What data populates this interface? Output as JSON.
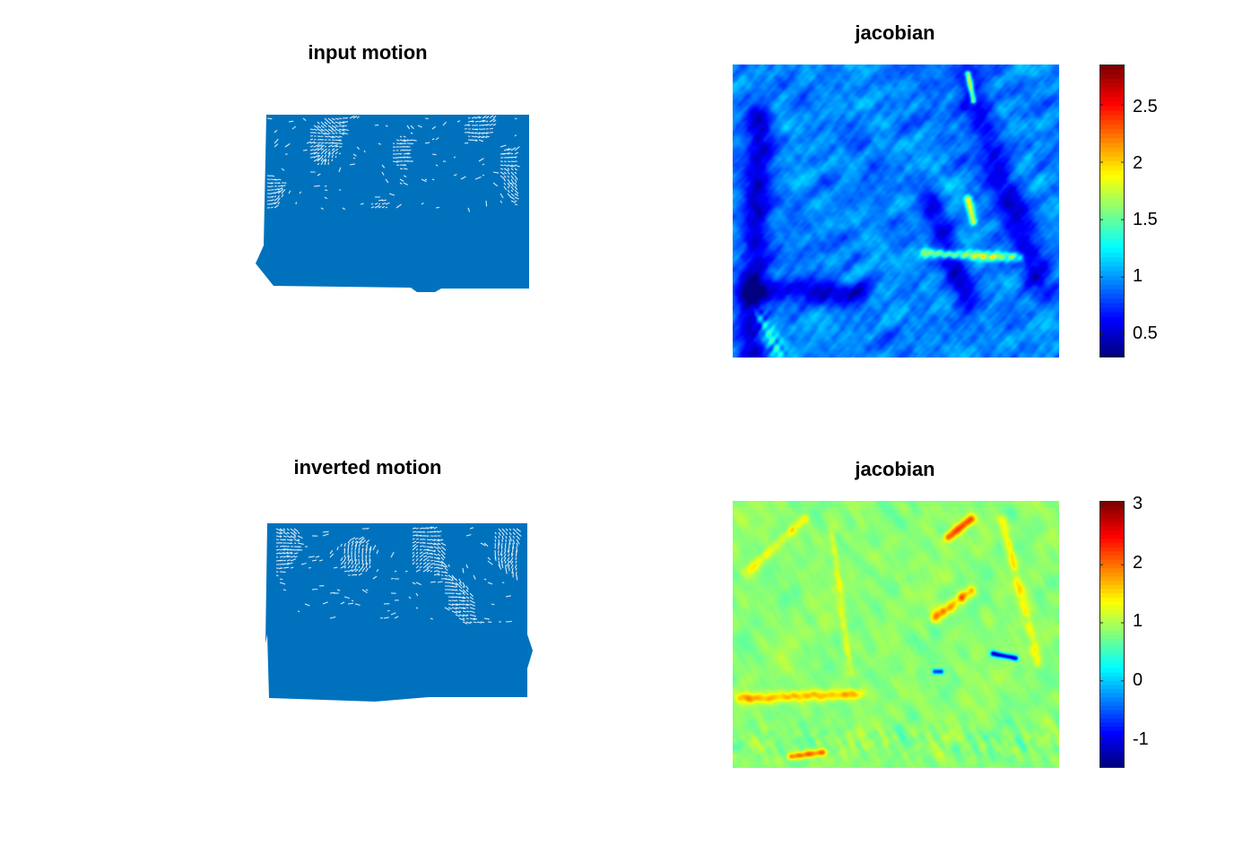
{
  "figure": {
    "colors": {
      "quiver": "#0072bd",
      "background": "#ffffff",
      "colormap": "jet"
    }
  },
  "chart_data": [
    {
      "type": "quiver",
      "title": "input motion",
      "color": "#0072bd",
      "axes": "off"
    },
    {
      "type": "heatmap",
      "title": "jacobian",
      "colormap": "jet",
      "clim": [
        0.3,
        2.85
      ],
      "colorbar_ticks": [
        "0.5",
        "1",
        "1.5",
        "2",
        "2.5"
      ],
      "colorbar_tick_values": [
        0.5,
        1,
        1.5,
        2,
        2.5
      ],
      "baseline_value": 0.95,
      "axes": "off"
    },
    {
      "type": "quiver",
      "title": "inverted motion",
      "color": "#0072bd",
      "axes": "off"
    },
    {
      "type": "heatmap",
      "title": "jacobian",
      "colormap": "jet",
      "clim": [
        -1.5,
        3.1
      ],
      "colorbar_ticks": [
        "-1",
        "0",
        "1",
        "2",
        "3"
      ],
      "colorbar_tick_values": [
        -1,
        0,
        1,
        2,
        3
      ],
      "baseline_value": 0.85,
      "axes": "off"
    }
  ]
}
